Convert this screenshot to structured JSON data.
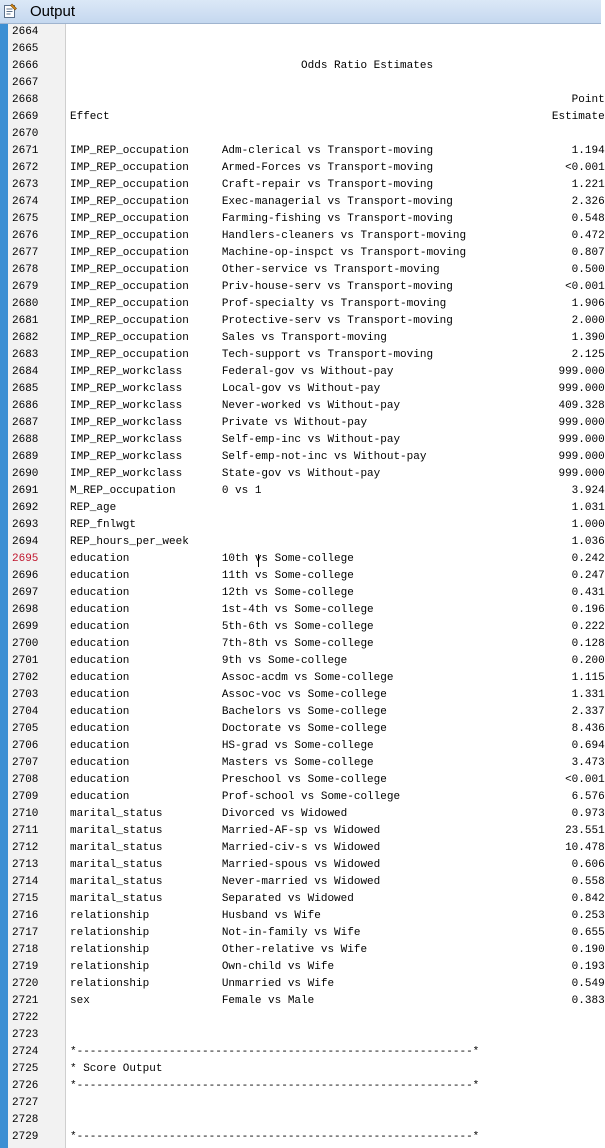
{
  "window": {
    "title": "Output",
    "icon": "output-window-icon"
  },
  "current_line": "2695",
  "lines": [
    {
      "n": "2664",
      "t": ""
    },
    {
      "n": "2665",
      "t": ""
    },
    {
      "n": "2666",
      "t": "                                   Odds Ratio Estimates"
    },
    {
      "n": "2667",
      "t": ""
    },
    {
      "n": "2668",
      "t": "                                                                            Point"
    },
    {
      "n": "2669",
      "t": "Effect                                                                   Estimate"
    },
    {
      "n": "2670",
      "t": ""
    },
    {
      "n": "2671",
      "t": "IMP_REP_occupation     Adm-clerical vs Transport-moving                     1.194"
    },
    {
      "n": "2672",
      "t": "IMP_REP_occupation     Armed-Forces vs Transport-moving                    <0.001"
    },
    {
      "n": "2673",
      "t": "IMP_REP_occupation     Craft-repair vs Transport-moving                     1.221"
    },
    {
      "n": "2674",
      "t": "IMP_REP_occupation     Exec-managerial vs Transport-moving                  2.326"
    },
    {
      "n": "2675",
      "t": "IMP_REP_occupation     Farming-fishing vs Transport-moving                  0.548"
    },
    {
      "n": "2676",
      "t": "IMP_REP_occupation     Handlers-cleaners vs Transport-moving                0.472"
    },
    {
      "n": "2677",
      "t": "IMP_REP_occupation     Machine-op-inspct vs Transport-moving                0.807"
    },
    {
      "n": "2678",
      "t": "IMP_REP_occupation     Other-service vs Transport-moving                    0.500"
    },
    {
      "n": "2679",
      "t": "IMP_REP_occupation     Priv-house-serv vs Transport-moving                 <0.001"
    },
    {
      "n": "2680",
      "t": "IMP_REP_occupation     Prof-specialty vs Transport-moving                   1.906"
    },
    {
      "n": "2681",
      "t": "IMP_REP_occupation     Protective-serv vs Transport-moving                  2.000"
    },
    {
      "n": "2682",
      "t": "IMP_REP_occupation     Sales vs Transport-moving                            1.390"
    },
    {
      "n": "2683",
      "t": "IMP_REP_occupation     Tech-support vs Transport-moving                     2.125"
    },
    {
      "n": "2684",
      "t": "IMP_REP_workclass      Federal-gov vs Without-pay                         999.000"
    },
    {
      "n": "2685",
      "t": "IMP_REP_workclass      Local-gov vs Without-pay                           999.000"
    },
    {
      "n": "2686",
      "t": "IMP_REP_workclass      Never-worked vs Without-pay                        409.328"
    },
    {
      "n": "2687",
      "t": "IMP_REP_workclass      Private vs Without-pay                             999.000"
    },
    {
      "n": "2688",
      "t": "IMP_REP_workclass      Self-emp-inc vs Without-pay                        999.000"
    },
    {
      "n": "2689",
      "t": "IMP_REP_workclass      Self-emp-not-inc vs Without-pay                    999.000"
    },
    {
      "n": "2690",
      "t": "IMP_REP_workclass      State-gov vs Without-pay                           999.000"
    },
    {
      "n": "2691",
      "t": "M_REP_occupation       0 vs 1                                               3.924"
    },
    {
      "n": "2692",
      "t": "REP_age                                                                     1.031"
    },
    {
      "n": "2693",
      "t": "REP_fnlwgt                                                                  1.000"
    },
    {
      "n": "2694",
      "t": "REP_hours_per_week                                                          1.036"
    },
    {
      "n": "2695",
      "t": "education              10th vs Some-college                                 0.242"
    },
    {
      "n": "2696",
      "t": "education              11th vs Some-college                                 0.247"
    },
    {
      "n": "2697",
      "t": "education              12th vs Some-college                                 0.431"
    },
    {
      "n": "2698",
      "t": "education              1st-4th vs Some-college                              0.196"
    },
    {
      "n": "2699",
      "t": "education              5th-6th vs Some-college                              0.222"
    },
    {
      "n": "2700",
      "t": "education              7th-8th vs Some-college                              0.128"
    },
    {
      "n": "2701",
      "t": "education              9th vs Some-college                                  0.200"
    },
    {
      "n": "2702",
      "t": "education              Assoc-acdm vs Some-college                           1.115"
    },
    {
      "n": "2703",
      "t": "education              Assoc-voc vs Some-college                            1.331"
    },
    {
      "n": "2704",
      "t": "education              Bachelors vs Some-college                            2.337"
    },
    {
      "n": "2705",
      "t": "education              Doctorate vs Some-college                            8.436"
    },
    {
      "n": "2706",
      "t": "education              HS-grad vs Some-college                              0.694"
    },
    {
      "n": "2707",
      "t": "education              Masters vs Some-college                              3.473"
    },
    {
      "n": "2708",
      "t": "education              Preschool vs Some-college                           <0.001"
    },
    {
      "n": "2709",
      "t": "education              Prof-school vs Some-college                          6.576"
    },
    {
      "n": "2710",
      "t": "marital_status         Divorced vs Widowed                                  0.973"
    },
    {
      "n": "2711",
      "t": "marital_status         Married-AF-sp vs Widowed                            23.551"
    },
    {
      "n": "2712",
      "t": "marital_status         Married-civ-s vs Widowed                            10.478"
    },
    {
      "n": "2713",
      "t": "marital_status         Married-spous vs Widowed                             0.606"
    },
    {
      "n": "2714",
      "t": "marital_status         Never-married vs Widowed                             0.558"
    },
    {
      "n": "2715",
      "t": "marital_status         Separated vs Widowed                                 0.842"
    },
    {
      "n": "2716",
      "t": "relationship           Husband vs Wife                                      0.253"
    },
    {
      "n": "2717",
      "t": "relationship           Not-in-family vs Wife                                0.655"
    },
    {
      "n": "2718",
      "t": "relationship           Other-relative vs Wife                               0.190"
    },
    {
      "n": "2719",
      "t": "relationship           Own-child vs Wife                                    0.193"
    },
    {
      "n": "2720",
      "t": "relationship           Unmarried vs Wife                                    0.549"
    },
    {
      "n": "2721",
      "t": "sex                    Female vs Male                                       0.383"
    },
    {
      "n": "2722",
      "t": ""
    },
    {
      "n": "2723",
      "t": ""
    },
    {
      "n": "2724",
      "t": "*------------------------------------------------------------*"
    },
    {
      "n": "2725",
      "t": "* Score Output"
    },
    {
      "n": "2726",
      "t": "*------------------------------------------------------------*"
    },
    {
      "n": "2727",
      "t": ""
    },
    {
      "n": "2728",
      "t": ""
    },
    {
      "n": "2729",
      "t": "*------------------------------------------------------------*"
    }
  ]
}
